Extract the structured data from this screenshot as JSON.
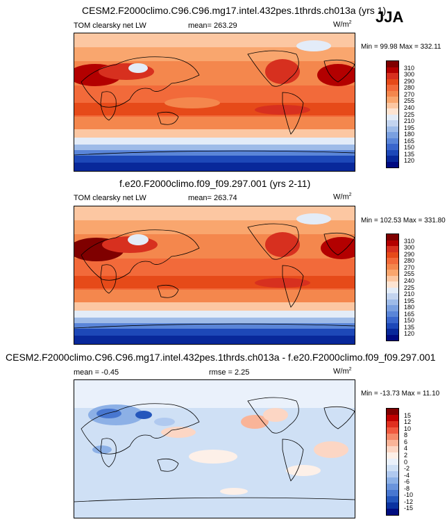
{
  "season": "JJA",
  "panels": [
    {
      "title": "CESM2.F2000climo.C96.C96.mg17.intel.432pes.1thrds.ch013a (yrs 1)",
      "variable": "TOM clearsky net LW",
      "mean_text": "mean= 263.29",
      "units": "W/m",
      "units_sup": "2",
      "minmax": "Min =  99.98 Max = 332.11",
      "colors": [
        "#7f0000",
        "#b30000",
        "#d7301f",
        "#e64a19",
        "#f26a3a",
        "#f4874d",
        "#f9a66e",
        "#fcc7a2",
        "#fde4d2",
        "#e3ecf8",
        "#c3d4ef",
        "#9ebbe8",
        "#7aa0e0",
        "#5a85d8",
        "#3a66cc",
        "#1d48b8",
        "#08289a",
        "#000a80"
      ],
      "levels": [
        "310",
        "300",
        "290",
        "280",
        "270",
        "255",
        "240",
        "225",
        "210",
        "195",
        "180",
        "165",
        "150",
        "135",
        "120"
      ],
      "chart_data": {
        "type": "heatmap",
        "variable": "TOM clearsky net LW",
        "mean": 263.29,
        "min": 99.98,
        "max": 332.11,
        "units": "W/m2",
        "levels": [
          120,
          135,
          150,
          165,
          180,
          195,
          210,
          225,
          240,
          255,
          270,
          280,
          290,
          300,
          310
        ]
      }
    },
    {
      "title": "f.e20.F2000climo.f09_f09.297.001 (yrs 2-11)",
      "variable": "TOM clearsky net LW",
      "mean_text": "mean= 263.74",
      "units": "W/m",
      "units_sup": "2",
      "minmax": "Min = 102.53 Max = 331.80",
      "colors": [
        "#7f0000",
        "#b30000",
        "#d7301f",
        "#e64a19",
        "#f26a3a",
        "#f4874d",
        "#f9a66e",
        "#fcc7a2",
        "#fde4d2",
        "#e3ecf8",
        "#c3d4ef",
        "#9ebbe8",
        "#7aa0e0",
        "#5a85d8",
        "#3a66cc",
        "#1d48b8",
        "#08289a",
        "#000a80"
      ],
      "levels": [
        "310",
        "300",
        "290",
        "280",
        "270",
        "255",
        "240",
        "225",
        "210",
        "195",
        "180",
        "165",
        "150",
        "135",
        "120"
      ],
      "chart_data": {
        "type": "heatmap",
        "variable": "TOM clearsky net LW",
        "mean": 263.74,
        "min": 102.53,
        "max": 331.8,
        "units": "W/m2",
        "levels": [
          120,
          135,
          150,
          165,
          180,
          195,
          210,
          225,
          240,
          255,
          270,
          280,
          290,
          300,
          310
        ]
      }
    },
    {
      "title": "CESM2.F2000climo.C96.C96.mg17.intel.432pes.1thrds.ch013a - f.e20.F2000climo.f09_f09.297.001",
      "mean_text": "mean =  -0.45",
      "rmse_text": "rmse =   2.25",
      "units": "W/m",
      "units_sup": "2",
      "minmax": "Min = -13.73 Max =  11.10",
      "colors": [
        "#800000",
        "#c00000",
        "#e03020",
        "#f05a40",
        "#f58a6a",
        "#f9b498",
        "#fcd6c4",
        "#fdf0e8",
        "#eaf1fb",
        "#cfe0f5",
        "#b0c9ef",
        "#8cb0e6",
        "#6a94dc",
        "#4877d0",
        "#2456bc",
        "#0a32a0",
        "#000d80"
      ],
      "levels": [
        "15",
        "12",
        "10",
        "8",
        "6",
        "4",
        "2",
        "0",
        "-2",
        "-4",
        "-6",
        "-8",
        "-10",
        "-12",
        "-15"
      ],
      "chart_data": {
        "type": "heatmap",
        "variable": "difference",
        "mean": -0.45,
        "rmse": 2.25,
        "min": -13.73,
        "max": 11.1,
        "units": "W/m2",
        "levels": [
          -15,
          -12,
          -10,
          -8,
          -6,
          -4,
          -2,
          0,
          2,
          4,
          6,
          8,
          10,
          12,
          15
        ]
      }
    }
  ]
}
